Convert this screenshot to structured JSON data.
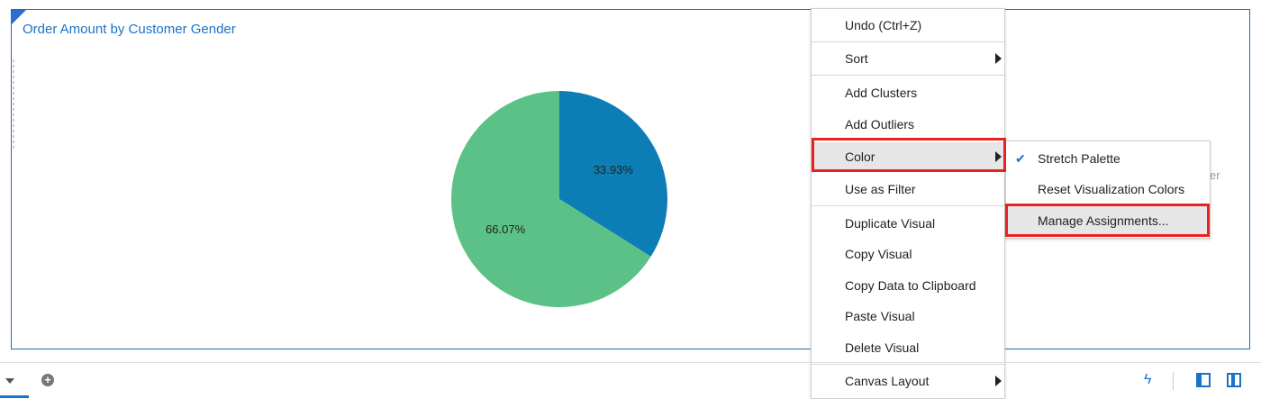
{
  "visualization": {
    "title": "Order Amount by Customer Gender",
    "ghost_text": "er",
    "colors": {
      "slice_blue": "#0d7eb5",
      "slice_green": "#5cc187",
      "accent": "#1a73c7",
      "highlight": "#e8231f"
    }
  },
  "chart_data": {
    "type": "pie",
    "title": "Order Amount by Customer Gender",
    "slices": [
      {
        "label": "33.93%",
        "value": 33.93,
        "color": "#0d7eb5"
      },
      {
        "label": "66.07%",
        "value": 66.07,
        "color": "#5cc187"
      }
    ]
  },
  "context_menu": {
    "items": [
      {
        "label": "Undo (Ctrl+Z)"
      },
      {
        "label": "Sort",
        "submenu": true
      },
      {
        "label": "Add Clusters"
      },
      {
        "label": "Add Outliers"
      },
      {
        "label": "Color",
        "submenu": true,
        "active": true
      },
      {
        "label": "Use as Filter"
      },
      {
        "label": "Duplicate Visual"
      },
      {
        "label": "Copy Visual"
      },
      {
        "label": "Copy Data to Clipboard"
      },
      {
        "label": "Paste Visual"
      },
      {
        "label": "Delete Visual"
      },
      {
        "label": "Canvas Layout",
        "submenu": true
      }
    ]
  },
  "color_submenu": {
    "items": [
      {
        "label": "Stretch Palette",
        "checked": true
      },
      {
        "label": "Reset Visualization Colors"
      },
      {
        "label": "Manage Assignments...",
        "active": true
      }
    ]
  },
  "bottom_bar": {
    "icons": [
      "dropdown-icon",
      "add-icon",
      "lightning-icon",
      "left-panel-icon",
      "right-panel-icon"
    ]
  }
}
